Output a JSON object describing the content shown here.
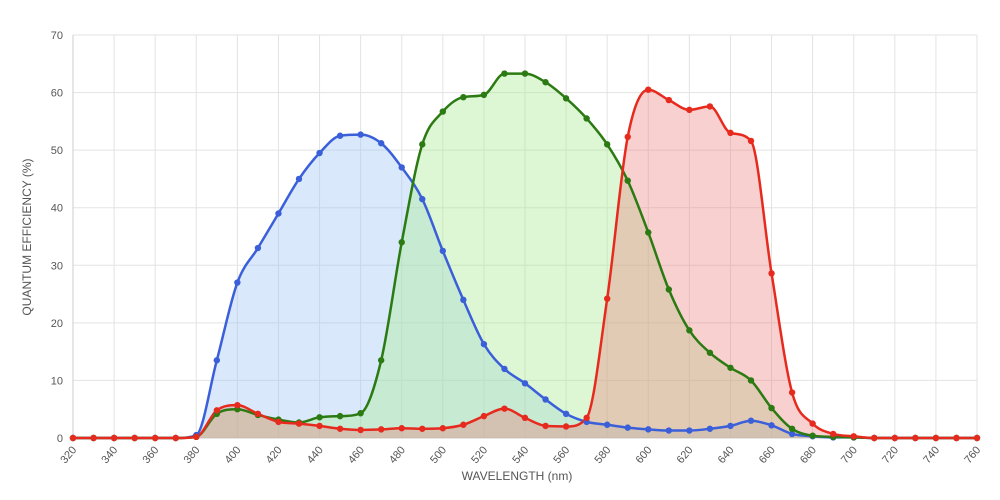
{
  "chart_data": {
    "type": "line",
    "xlabel": "WAVELENGTH (nm)",
    "ylabel": "QUANTUM EFFICIENCY (%)",
    "x": [
      320,
      330,
      340,
      350,
      360,
      370,
      380,
      390,
      400,
      410,
      420,
      430,
      440,
      450,
      460,
      470,
      480,
      490,
      500,
      510,
      520,
      530,
      540,
      550,
      560,
      570,
      580,
      590,
      600,
      610,
      620,
      630,
      640,
      650,
      660,
      670,
      680,
      690,
      700,
      710,
      720,
      730,
      740,
      750,
      760
    ],
    "series": [
      {
        "color": "#3a5fd9",
        "fill": "rgba(160,200,245,0.4)",
        "values": [
          0,
          0,
          0,
          0,
          0,
          0,
          0.5,
          13.5,
          27,
          33,
          39,
          45,
          49.5,
          52.5,
          52.7,
          51.2,
          47,
          41.5,
          32.5,
          24,
          16.3,
          12,
          9.5,
          6.7,
          4.2,
          2.8,
          2.3,
          1.8,
          1.5,
          1.3,
          1.3,
          1.6,
          2.1,
          3,
          2.2,
          0.7,
          0.3,
          0.1,
          0.1,
          0,
          0,
          0,
          0,
          0,
          0
        ]
      },
      {
        "color": "#2b7a12",
        "fill": "rgba(170,235,150,0.4)",
        "values": [
          0,
          0,
          0,
          0,
          0,
          0,
          0.2,
          4.2,
          5,
          4,
          3.2,
          2.7,
          3.6,
          3.8,
          4.3,
          13.5,
          34,
          51,
          56.7,
          59.2,
          59.6,
          63.3,
          63.3,
          61.8,
          59,
          55.5,
          51,
          44.7,
          35.7,
          25.8,
          18.7,
          14.8,
          12.2,
          10,
          5.2,
          1.6,
          0.4,
          0.2,
          0.1,
          0,
          0,
          0,
          0,
          0,
          0
        ]
      },
      {
        "color": "#e62a1e",
        "fill": "rgba(235,120,120,0.35)",
        "values": [
          0,
          0,
          0,
          0,
          0,
          0,
          0.2,
          4.8,
          5.7,
          4.2,
          2.8,
          2.5,
          2.1,
          1.6,
          1.4,
          1.5,
          1.7,
          1.6,
          1.7,
          2.3,
          3.8,
          5.1,
          3.5,
          2.1,
          2,
          3.5,
          24.2,
          52.3,
          60.5,
          58.7,
          57,
          57.6,
          53,
          51.6,
          28.6,
          7.9,
          2.5,
          0.7,
          0.3,
          0,
          0,
          0,
          0,
          0,
          0
        ]
      }
    ],
    "xlim": [
      320,
      760
    ],
    "xticks": [
      320,
      340,
      360,
      380,
      400,
      420,
      440,
      460,
      480,
      500,
      520,
      540,
      560,
      580,
      600,
      620,
      640,
      660,
      680,
      700,
      720,
      740,
      760
    ],
    "ylim": [
      0,
      70
    ],
    "yticks": [
      0,
      10,
      20,
      30,
      40,
      50,
      60,
      70
    ],
    "grid": true
  }
}
